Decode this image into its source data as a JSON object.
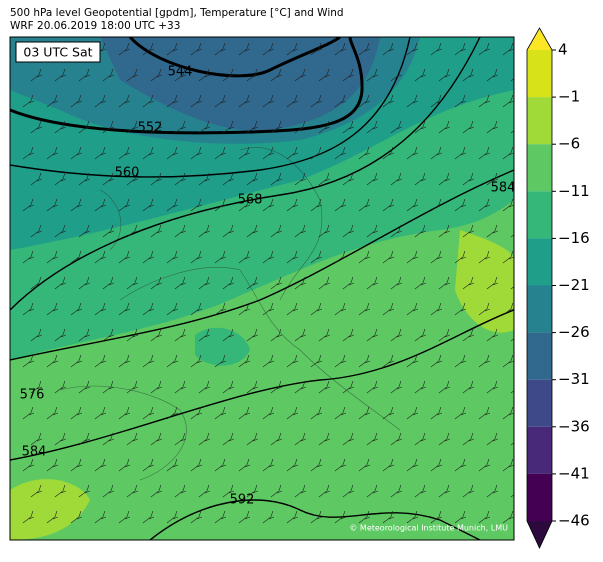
{
  "header": {
    "title": "500 hPa level Geopotential [gpdm], Temperature [°C] and Wind",
    "subtitle": "WRF 20.06.2019 18:00 UTC +33"
  },
  "map": {
    "time_label": "03 UTC Sat",
    "contour_labels": [
      "544",
      "552",
      "560",
      "568",
      "576",
      "584",
      "584",
      "592"
    ],
    "credit": "© Meteorological Institute Munich, LMU"
  },
  "colorbar": {
    "ticks": [
      4,
      {
        "value": -1,
        "label": "−1"
      },
      {
        "value": -6,
        "label": "−6"
      },
      {
        "value": -11,
        "label": "−11"
      },
      {
        "value": -16,
        "label": "−16"
      },
      {
        "value": -21,
        "label": "−21"
      },
      {
        "value": -26,
        "label": "−26"
      },
      {
        "value": -31,
        "label": "−31"
      },
      {
        "value": -36,
        "label": "−36"
      },
      {
        "value": -41,
        "label": "−41"
      },
      {
        "value": -46,
        "label": "−46"
      }
    ],
    "colors": [
      "#d8e219",
      "#a0da39",
      "#5ec962",
      "#35b779",
      "#1f9e89",
      "#26828e",
      "#31688e",
      "#3e4989",
      "#482878",
      "#440154"
    ],
    "over_color": "#fde725",
    "under_color": "#2d0a3e"
  }
}
